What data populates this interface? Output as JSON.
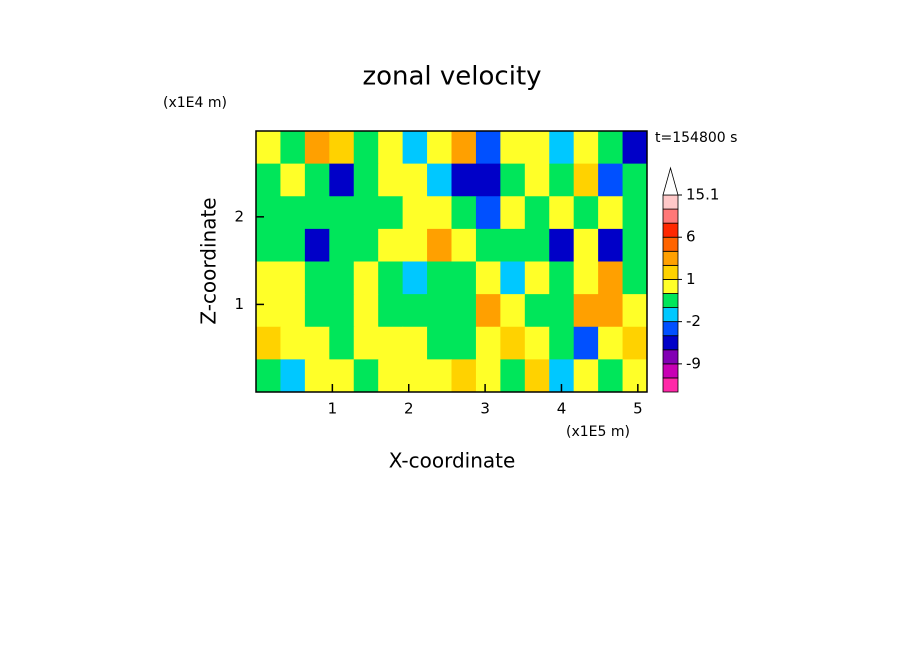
{
  "chart_data": {
    "type": "contour",
    "title": "zonal velocity",
    "x_label": "X-coordinate",
    "y_label": "Z-coordinate",
    "x_unit": "(x1E5 m)",
    "y_unit": "(x1E4 m)",
    "annotation": "t=154800 s",
    "xlim": [
      0,
      5.12
    ],
    "ylim": [
      0,
      2.98
    ],
    "xticks": [
      1,
      2,
      3,
      4,
      5
    ],
    "yticks": [
      1,
      2
    ],
    "z": [
      [
        0.5,
        -0.5,
        3,
        2,
        -0.5,
        0.5,
        -1,
        0.5,
        2.5,
        -2,
        0.5,
        1,
        -1,
        0.5,
        -0.5,
        -3
      ],
      [
        -0.5,
        0.5,
        -0.5,
        -3,
        -0.5,
        0.5,
        0.5,
        -1,
        -3,
        -5,
        -0.5,
        0.5,
        -0.5,
        1.5,
        -2,
        -0.5
      ],
      [
        -0.5,
        -0.5,
        -0.5,
        -0.5,
        -0.5,
        -0.5,
        0.5,
        0.5,
        -0.5,
        -2,
        1,
        -0.5,
        0.5,
        -0.5,
        0.5,
        -0.5
      ],
      [
        -0.5,
        -0.5,
        -4,
        -0.5,
        -0.5,
        0.5,
        0.5,
        3,
        0.5,
        -0.5,
        -0.5,
        -0.5,
        -4,
        0.5,
        -4,
        -0.5
      ],
      [
        0.5,
        0.5,
        -0.5,
        -0.5,
        0.5,
        -0.5,
        -1.5,
        -0.5,
        -0.5,
        1,
        -1,
        0.5,
        -0.5,
        0.5,
        3,
        -0.5
      ],
      [
        0.5,
        0.5,
        -0.5,
        -0.5,
        0.5,
        -0.5,
        -0.5,
        -0.5,
        -0.5,
        3,
        0.5,
        -0.5,
        -0.5,
        4,
        3,
        0.5
      ],
      [
        2,
        0.5,
        0.5,
        -0.5,
        0.5,
        0.5,
        0.5,
        -0.5,
        -0.5,
        0.5,
        2,
        0.5,
        -0.5,
        -2,
        0.5,
        1.5
      ],
      [
        -0.5,
        -1.5,
        0.5,
        0.5,
        -0.5,
        0.5,
        0.5,
        0.5,
        2,
        0.5,
        -0.5,
        2,
        -1,
        0.5,
        -0.5,
        0.5
      ]
    ],
    "colorbar": {
      "levels": [
        -15,
        -12,
        -9,
        -6,
        -3,
        -2,
        -1,
        0,
        1,
        2,
        4,
        6,
        8,
        11,
        15.1
      ],
      "colors": [
        "#ff28a8",
        "#c800b4",
        "#8200b4",
        "#0000c8",
        "#0050ff",
        "#00c8ff",
        "#00e65a",
        "#ffff28",
        "#ffd200",
        "#ffa000",
        "#ff6400",
        "#ff2800",
        "#ff7878",
        "#ffc8c8"
      ],
      "ticks": [
        15.1,
        6,
        1,
        -2,
        -9
      ]
    }
  }
}
